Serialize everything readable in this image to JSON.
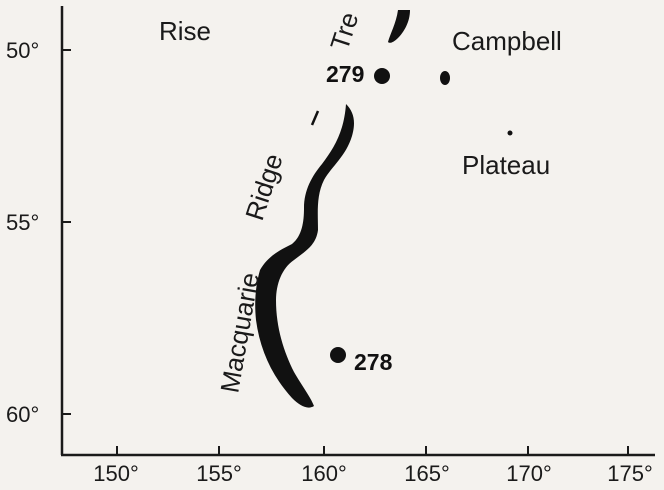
{
  "map": {
    "x_ticks": [
      "150°",
      "155°",
      "160°",
      "165°",
      "170°",
      "175°"
    ],
    "y_ticks": [
      "50°",
      "55°",
      "60°"
    ],
    "labels": {
      "rise": "Rise",
      "trench_fragment": "Tre",
      "campbell": "Campbell",
      "plateau": "Plateau",
      "ridge": "Ridge",
      "macquarie": "Macquarie"
    },
    "sites": [
      {
        "label": "279",
        "lon": 163.0,
        "lat": 50.6
      },
      {
        "label": "278",
        "lon": 161.0,
        "lat": 58.4
      }
    ],
    "ink_color": "#111111",
    "background_color": "#f4f2ee"
  }
}
